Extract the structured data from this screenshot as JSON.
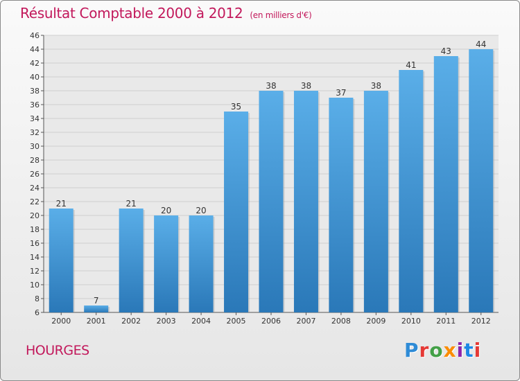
{
  "header": {
    "title": "Résultat Comptable 2000 à 2012",
    "subtitle": "(en milliers d'€)"
  },
  "footer": {
    "town": "HOURGES",
    "logo_letters": [
      {
        "ch": "P",
        "color": "#2e8bd6"
      },
      {
        "ch": "r",
        "color": "#e53935"
      },
      {
        "ch": "o",
        "color": "#43a047"
      },
      {
        "ch": "x",
        "color": "#fb8c00"
      },
      {
        "ch": "i",
        "color": "#8e24aa"
      },
      {
        "ch": "t",
        "color": "#1e88e5"
      },
      {
        "ch": "i",
        "color": "#e53935"
      }
    ]
  },
  "chart_data": {
    "type": "bar",
    "title": "Résultat Comptable 2000 à 2012",
    "subtitle": "(en milliers d'€)",
    "categories": [
      "2000",
      "2001",
      "2002",
      "2003",
      "2004",
      "2005",
      "2006",
      "2007",
      "2008",
      "2009",
      "2010",
      "2011",
      "2012"
    ],
    "values": [
      21,
      7,
      21,
      20,
      20,
      35,
      38,
      38,
      37,
      38,
      41,
      43,
      44
    ],
    "ylim": [
      6,
      46
    ],
    "yticks": [
      6,
      8,
      10,
      12,
      14,
      16,
      18,
      20,
      22,
      24,
      26,
      28,
      30,
      32,
      34,
      36,
      38,
      40,
      42,
      44,
      46
    ],
    "grid": true,
    "bar_color_top": "#5aaee8",
    "bar_color_bottom": "#2a78b8"
  }
}
